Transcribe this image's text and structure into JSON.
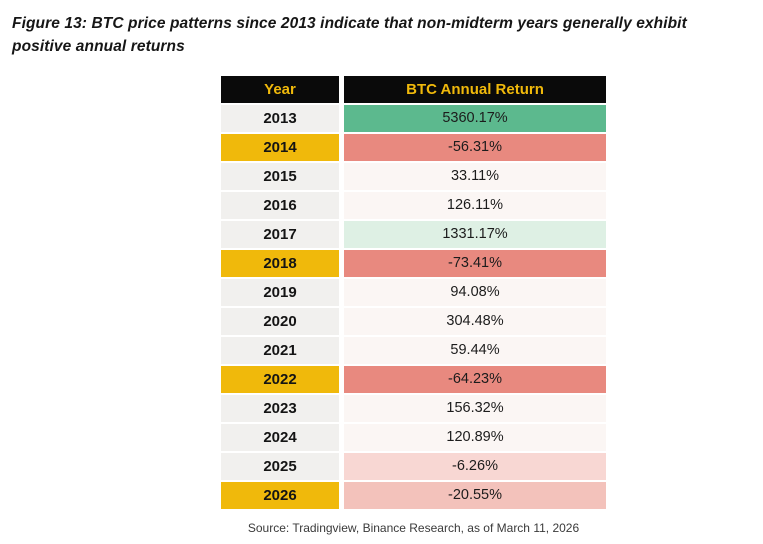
{
  "figure": {
    "title": "Figure 13: BTC price patterns since 2013 indicate that non-midterm years generally exhibit positive annual returns",
    "source": "Source: Tradingview, Binance Research, as of March 11, 2026"
  },
  "colors": {
    "header_bg": "#0a0a0a",
    "header_text": "#f0b90b",
    "year_default_bg": "#f1f0ee",
    "year_highlight_bg": "#f0b90b",
    "value_default_bg": "#fbf6f4",
    "value_strong_green": "#5cb98e",
    "value_light_green": "#def0e4",
    "value_strong_red": "#e8897f",
    "value_light_pink": "#f8d7d3",
    "value_medium_pink": "#f3c2bb"
  },
  "table": {
    "headers": [
      "Year",
      "BTC Annual Return"
    ],
    "rows": [
      {
        "year": "2013",
        "value": "5360.17%",
        "year_bg": "#f1f0ee",
        "value_bg": "#5cb98e"
      },
      {
        "year": "2014",
        "value": "-56.31%",
        "year_bg": "#f0b90b",
        "value_bg": "#e8897f"
      },
      {
        "year": "2015",
        "value": "33.11%",
        "year_bg": "#f1f0ee",
        "value_bg": "#fbf6f4"
      },
      {
        "year": "2016",
        "value": "126.11%",
        "year_bg": "#f1f0ee",
        "value_bg": "#fbf6f4"
      },
      {
        "year": "2017",
        "value": "1331.17%",
        "year_bg": "#f1f0ee",
        "value_bg": "#def0e4"
      },
      {
        "year": "2018",
        "value": "-73.41%",
        "year_bg": "#f0b90b",
        "value_bg": "#e8897f"
      },
      {
        "year": "2019",
        "value": "94.08%",
        "year_bg": "#f1f0ee",
        "value_bg": "#fbf6f4"
      },
      {
        "year": "2020",
        "value": "304.48%",
        "year_bg": "#f1f0ee",
        "value_bg": "#fbf6f4"
      },
      {
        "year": "2021",
        "value": "59.44%",
        "year_bg": "#f1f0ee",
        "value_bg": "#fbf6f4"
      },
      {
        "year": "2022",
        "value": "-64.23%",
        "year_bg": "#f0b90b",
        "value_bg": "#e8897f"
      },
      {
        "year": "2023",
        "value": "156.32%",
        "year_bg": "#f1f0ee",
        "value_bg": "#fbf6f4"
      },
      {
        "year": "2024",
        "value": "120.89%",
        "year_bg": "#f1f0ee",
        "value_bg": "#fbf6f4"
      },
      {
        "year": "2025",
        "value": "-6.26%",
        "year_bg": "#f1f0ee",
        "value_bg": "#f8d7d3"
      },
      {
        "year": "2026",
        "value": "-20.55%",
        "year_bg": "#f0b90b",
        "value_bg": "#f3c2bb"
      }
    ]
  },
  "chart_data": {
    "type": "table",
    "title": "Figure 13: BTC price patterns since 2013 indicate that non-midterm years generally exhibit positive annual returns",
    "columns": [
      "Year",
      "BTC Annual Return"
    ],
    "rows": [
      [
        "2013",
        5360.17
      ],
      [
        "2014",
        -56.31
      ],
      [
        "2015",
        33.11
      ],
      [
        "2016",
        126.11
      ],
      [
        "2017",
        1331.17
      ],
      [
        "2018",
        -73.41
      ],
      [
        "2019",
        94.08
      ],
      [
        "2020",
        304.48
      ],
      [
        "2021",
        59.44
      ],
      [
        "2022",
        -64.23
      ],
      [
        "2023",
        156.32
      ],
      [
        "2024",
        120.89
      ],
      [
        "2025",
        -6.26
      ],
      [
        "2026",
        -20.55
      ]
    ],
    "units": "percent",
    "highlighted_years": [
      "2014",
      "2018",
      "2022",
      "2026"
    ],
    "source": "Source: Tradingview, Binance Research, as of March 11, 2026"
  }
}
